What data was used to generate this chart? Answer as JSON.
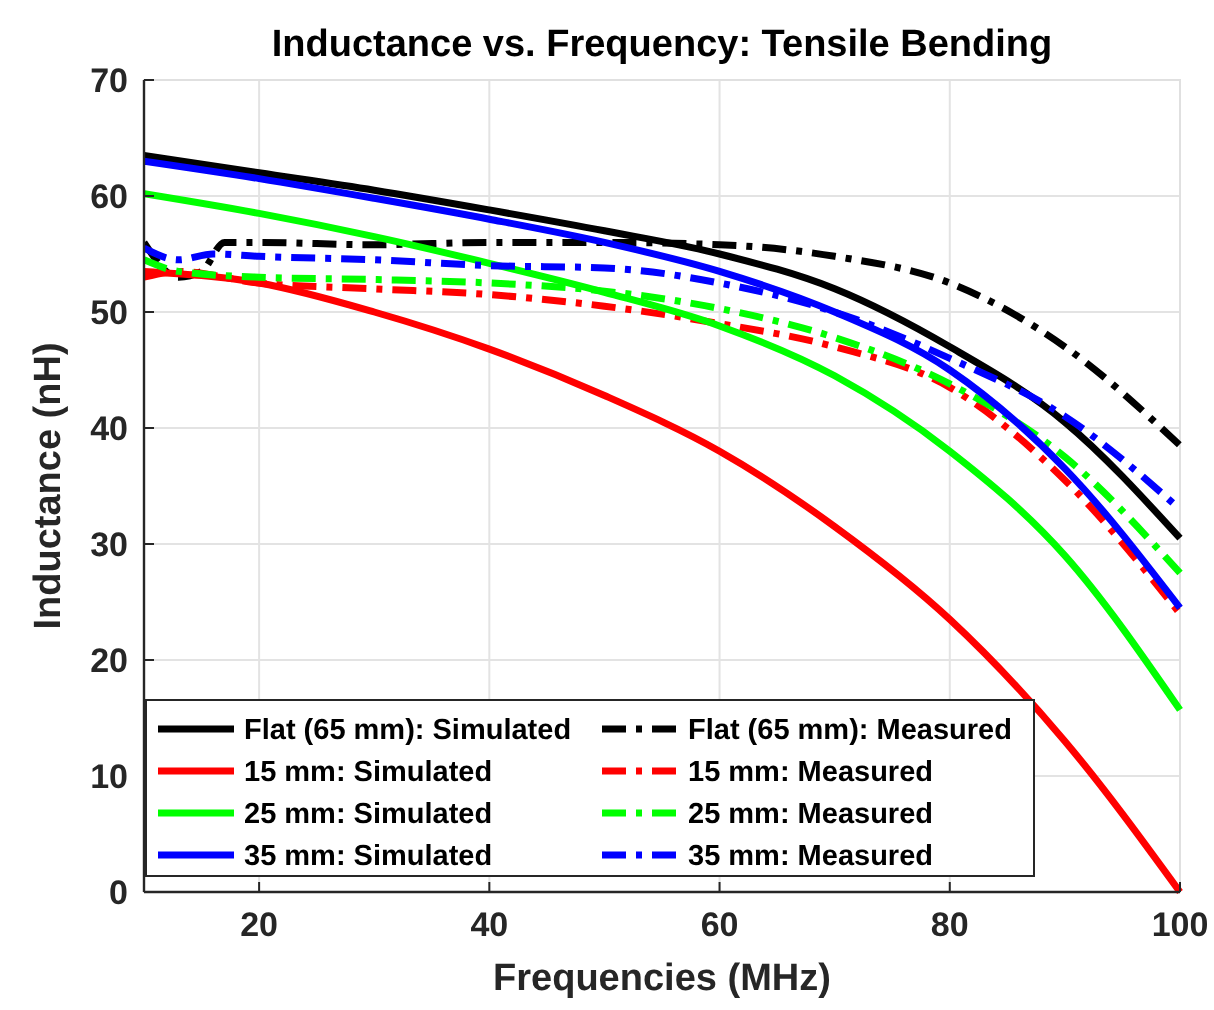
{
  "chart_data": {
    "type": "line",
    "title": "Inductance vs. Frequency: Tensile Bending",
    "xlabel": "Frequencies (MHz)",
    "ylabel": "Inductance (nH)",
    "xlim": [
      10,
      100
    ],
    "ylim": [
      0,
      70
    ],
    "xticks": [
      20,
      40,
      60,
      80,
      100
    ],
    "yticks": [
      0,
      10,
      20,
      30,
      40,
      50,
      60,
      70
    ],
    "grid": true,
    "legend": "bottom left",
    "x": [
      10,
      20,
      30,
      40,
      50,
      60,
      70,
      80,
      90,
      100
    ],
    "series": [
      {
        "name": "Flat (65 mm): Simulated",
        "color": "#000000",
        "line_style": "solid",
        "values": [
          63.5,
          62,
          60.5,
          58.8,
          57,
          55,
          52,
          47,
          40.5,
          30.5
        ]
      },
      {
        "name": "Flat (65 mm): Measured",
        "color": "#000000",
        "line_style": "dashed",
        "x": [
          10,
          13,
          15,
          17,
          20,
          30,
          40,
          50,
          60,
          70,
          80,
          90,
          100
        ],
        "values": [
          56,
          53,
          53.5,
          56,
          56,
          55.8,
          56,
          56,
          55.8,
          54.8,
          52.5,
          47,
          38.5
        ]
      },
      {
        "name": "15 mm: Simulated",
        "color": "#ff0000",
        "line_style": "solid",
        "values": [
          53.5,
          52.5,
          50,
          46.8,
          42.8,
          38,
          31.5,
          23.5,
          13,
          0
        ]
      },
      {
        "name": "15 mm: Measured",
        "color": "#ff0000",
        "line_style": "dashed",
        "x": [
          10,
          13,
          20,
          30,
          40,
          50,
          60,
          70,
          80,
          90,
          100
        ],
        "values": [
          53,
          53.5,
          52.5,
          52,
          51.5,
          50.5,
          49,
          47,
          43.5,
          35.5,
          24
        ]
      },
      {
        "name": "25 mm: Simulated",
        "color": "#00ff00",
        "line_style": "solid",
        "values": [
          60.2,
          58.5,
          56.5,
          54.2,
          51.7,
          48.8,
          44.5,
          38,
          29,
          15.7
        ]
      },
      {
        "name": "25 mm: Measured",
        "color": "#00ff00",
        "line_style": "dashed",
        "x": [
          10,
          13,
          20,
          30,
          40,
          50,
          60,
          70,
          80,
          90,
          100
        ],
        "values": [
          54.5,
          53.5,
          53,
          52.8,
          52.5,
          51.8,
          50.3,
          47.8,
          43.8,
          37.5,
          27.5
        ]
      },
      {
        "name": "35 mm: Simulated",
        "color": "#0000ff",
        "line_style": "solid",
        "values": [
          63,
          61.5,
          59.8,
          58,
          56,
          53.5,
          50,
          45,
          36.5,
          24.5
        ]
      },
      {
        "name": "35 mm: Measured",
        "color": "#0000ff",
        "line_style": "dashed",
        "x": [
          10,
          13,
          16,
          20,
          30,
          40,
          50,
          60,
          70,
          80,
          90,
          100
        ],
        "values": [
          55.5,
          54.5,
          55,
          54.8,
          54.5,
          54,
          53.8,
          52.5,
          50,
          46,
          41,
          33
        ]
      }
    ]
  }
}
